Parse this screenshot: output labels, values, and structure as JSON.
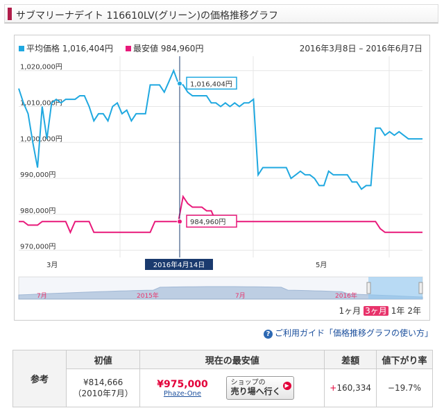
{
  "header": {
    "title": "サブマリーナデイト 116610LV(グリーン)の価格推移グラフ"
  },
  "chart": {
    "legend_avg": "平均価格 1,016,404円",
    "legend_min": "最安値 984,960円",
    "date_range": "2016年3月8日 – 2016年6月7日",
    "tooltip_avg": "1,016,404円",
    "tooltip_min": "984,960円",
    "crosshair_date": "2016年4月14日",
    "navigator_labels": [
      "7月",
      "2015年",
      "7月",
      "2016年"
    ],
    "range_buttons": [
      "1ヶ月",
      "3ヶ月",
      "1年",
      "2年"
    ],
    "range_selected": "3ヶ月"
  },
  "chart_data": {
    "type": "line",
    "title": "",
    "xlabel": "",
    "ylabel": "",
    "ylim": [
      968000,
      1024000
    ],
    "x_ticks": [
      "3月",
      "5月"
    ],
    "y_ticks": [
      "970,000円",
      "980,000円",
      "990,000円",
      "1,000,000円",
      "1,010,000円",
      "1,020,000円"
    ],
    "series": [
      {
        "name": "平均価格",
        "color": "#1fa8e0",
        "values": [
          1015000,
          1011000,
          1008000,
          1000000,
          993000,
          1010000,
          1001000,
          1011000,
          1012000,
          1011000,
          1012000,
          1012000,
          1012000,
          1013000,
          1013000,
          1010000,
          1006000,
          1008000,
          1008000,
          1006000,
          1010000,
          1011000,
          1008000,
          1009000,
          1006000,
          1008000,
          1008000,
          1008000,
          1016000,
          1016000,
          1016000,
          1014000,
          1017000,
          1020000,
          1016404,
          1016000,
          1014000,
          1013000,
          1013000,
          1013000,
          1013000,
          1011000,
          1011000,
          1010000,
          1011000,
          1010000,
          1011000,
          1010000,
          1011000,
          1011000,
          1012000,
          991000,
          993000,
          993000,
          993000,
          993000,
          993000,
          993000,
          990000,
          991000,
          992000,
          991000,
          991000,
          990000,
          988000,
          988000,
          992000,
          991000,
          991000,
          991000,
          991000,
          989000,
          989000,
          987000,
          988000,
          988000,
          1004000,
          1004000,
          1002000,
          1003000,
          1002000,
          1003000,
          1002000,
          1001000,
          1001000,
          1001000,
          1001000
        ],
        "mid_values_note": ""
      },
      {
        "name": "最安値",
        "color": "#e8197a",
        "values": [
          978000,
          978000,
          977000,
          977000,
          977000,
          978000,
          978000,
          978000,
          978000,
          978000,
          978000,
          975000,
          978000,
          978000,
          978000,
          978000,
          975000,
          975000,
          975000,
          975000,
          975000,
          975000,
          975000,
          975000,
          975000,
          975000,
          975000,
          975000,
          975000,
          978000,
          978000,
          978000,
          978000,
          978000,
          978000,
          984960,
          983000,
          982000,
          982000,
          982000,
          981000,
          981000,
          978000,
          978000,
          978000,
          978000,
          978000,
          978000,
          978000,
          978000,
          978000,
          978000,
          978000,
          978000,
          978000,
          978000,
          978000,
          978000,
          978000,
          978000,
          978000,
          978000,
          978000,
          978000,
          978000,
          978000,
          978000,
          978000,
          978000,
          978000,
          978000,
          978000,
          978000,
          978000,
          978000,
          978000,
          978000,
          976000,
          975000,
          975000,
          975000,
          975000,
          975000,
          975000,
          975000,
          975000,
          975000
        ]
      }
    ]
  },
  "guide": {
    "text": "ご利用ガイド「価格推移グラフの使い方」"
  },
  "reference": {
    "row_label": "参考",
    "headers": [
      "初値",
      "現在の最安値",
      "差額",
      "値下がり率"
    ],
    "initial_price": "¥814,666",
    "initial_date": "（2010年7月）",
    "current_price": "¥975,000",
    "shop_name": "Phaze-One",
    "shop_button_top": "ショップの",
    "shop_button_main": "売り場へ行く",
    "diff": "+160,334",
    "drop_rate": "−19.7%"
  },
  "colors": {
    "avg": "#1fa8e0",
    "min": "#e8197a",
    "accent": "#b01d4a"
  }
}
